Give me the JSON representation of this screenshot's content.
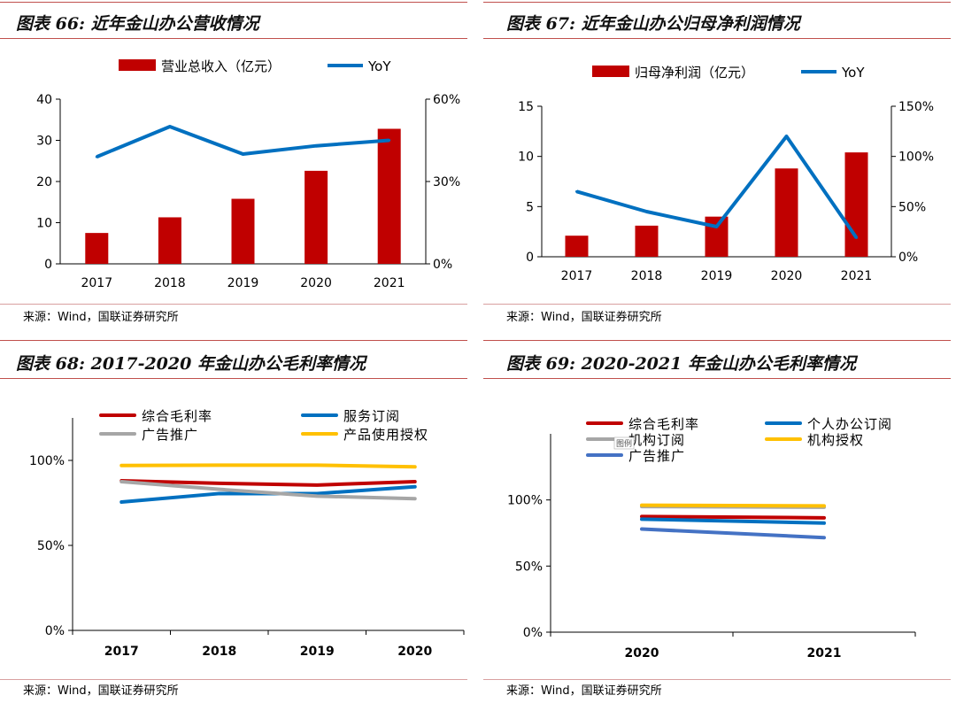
{
  "panels": [
    {
      "title": "图表 66: 近年金山办公营收情况",
      "source": "来源：Wind，国联证券研究所"
    },
    {
      "title": "图表 67: 近年金山办公归母净利润情况",
      "source": "来源：Wind，国联证券研究所"
    },
    {
      "title": "图表 68: 2017-2020 年金山办公毛利率情况",
      "source": "来源：Wind，国联证券研究所"
    },
    {
      "title": "图表 69: 2020-2021 年金山办公毛利率情况",
      "source": "来源：Wind，国联证券研究所"
    }
  ],
  "colors": {
    "red": "#c00000",
    "blue": "#0070c0",
    "gray": "#a6a6a6",
    "yellow": "#ffc000",
    "steel": "#4472c4",
    "rule": "#c0504d"
  },
  "chart_data": [
    {
      "type": "bar",
      "title": "近年金山办公营收情况",
      "categories": [
        "2017",
        "2018",
        "2019",
        "2020",
        "2021"
      ],
      "series": [
        {
          "name": "营业总收入（亿元）",
          "kind": "bar",
          "axis": "left",
          "color": "#c00000",
          "values": [
            7.5,
            11.3,
            15.8,
            22.6,
            32.8
          ]
        },
        {
          "name": "YoY",
          "kind": "line",
          "axis": "right",
          "color": "#0070c0",
          "values": [
            0.39,
            0.5,
            0.4,
            0.43,
            0.45
          ]
        }
      ],
      "yleft": {
        "min": 0,
        "max": 40,
        "ticks": [
          0,
          10,
          20,
          30,
          40
        ],
        "labels": [
          "0",
          "10",
          "20",
          "30",
          "40"
        ]
      },
      "yright": {
        "min": 0,
        "max": 0.6,
        "ticks": [
          0,
          0.3,
          0.6
        ],
        "labels": [
          "0%",
          "30%",
          "60%"
        ]
      },
      "legend": "top"
    },
    {
      "type": "bar",
      "title": "近年金山办公归母净利润情况",
      "categories": [
        "2017",
        "2018",
        "2019",
        "2020",
        "2021"
      ],
      "series": [
        {
          "name": "归母净利润（亿元）",
          "kind": "bar",
          "axis": "left",
          "color": "#c00000",
          "values": [
            2.1,
            3.1,
            4.0,
            8.8,
            10.4
          ]
        },
        {
          "name": "YoY",
          "kind": "line",
          "axis": "right",
          "color": "#0070c0",
          "values": [
            0.65,
            0.45,
            0.3,
            1.2,
            0.19
          ]
        }
      ],
      "yleft": {
        "min": 0,
        "max": 15,
        "ticks": [
          0,
          5,
          10,
          15
        ],
        "labels": [
          "0",
          "5",
          "10",
          "15"
        ]
      },
      "yright": {
        "min": 0,
        "max": 1.5,
        "ticks": [
          0,
          0.5,
          1.0,
          1.5
        ],
        "labels": [
          "0%",
          "50%",
          "100%",
          "150%"
        ]
      },
      "legend": "top"
    },
    {
      "type": "line",
      "title": "2017-2020 年金山办公毛利率情况",
      "categories": [
        "2017",
        "2018",
        "2019",
        "2020"
      ],
      "series": [
        {
          "name": "综合毛利率",
          "color": "#c00000",
          "values": [
            0.88,
            0.865,
            0.855,
            0.875
          ]
        },
        {
          "name": "服务订阅",
          "color": "#0070c0",
          "values": [
            0.755,
            0.805,
            0.805,
            0.845
          ]
        },
        {
          "name": "广告推广",
          "color": "#a6a6a6",
          "values": [
            0.875,
            0.83,
            0.79,
            0.775
          ]
        },
        {
          "name": "产品使用授权",
          "color": "#ffc000",
          "values": [
            0.97,
            0.972,
            0.972,
            0.962
          ]
        }
      ],
      "y": {
        "min": 0,
        "max": 1.25,
        "ticks": [
          0,
          0.5,
          1.0
        ],
        "labels": [
          "0%",
          "50%",
          "100%"
        ]
      },
      "legend": "top"
    },
    {
      "type": "line",
      "title": "2020-2021 年金山办公毛利率情况",
      "categories": [
        "2020",
        "2021"
      ],
      "series": [
        {
          "name": "综合毛利率",
          "color": "#c00000",
          "values": [
            0.875,
            0.865
          ]
        },
        {
          "name": "个人办公订阅",
          "color": "#0070c0",
          "values": [
            0.855,
            0.825
          ]
        },
        {
          "name": "机构订阅",
          "color": "#a6a6a6",
          "values": [
            0.95,
            0.945
          ]
        },
        {
          "name": "机构授权",
          "color": "#ffc000",
          "values": [
            0.96,
            0.955
          ]
        },
        {
          "name": "广告推广",
          "color": "#4472c4",
          "values": [
            0.78,
            0.715
          ]
        }
      ],
      "y": {
        "min": 0,
        "max": 1.5,
        "ticks": [
          0,
          0.5,
          1.0
        ],
        "labels": [
          "0%",
          "50%",
          "100%"
        ]
      },
      "legend": "top",
      "annotation": "图例"
    }
  ]
}
